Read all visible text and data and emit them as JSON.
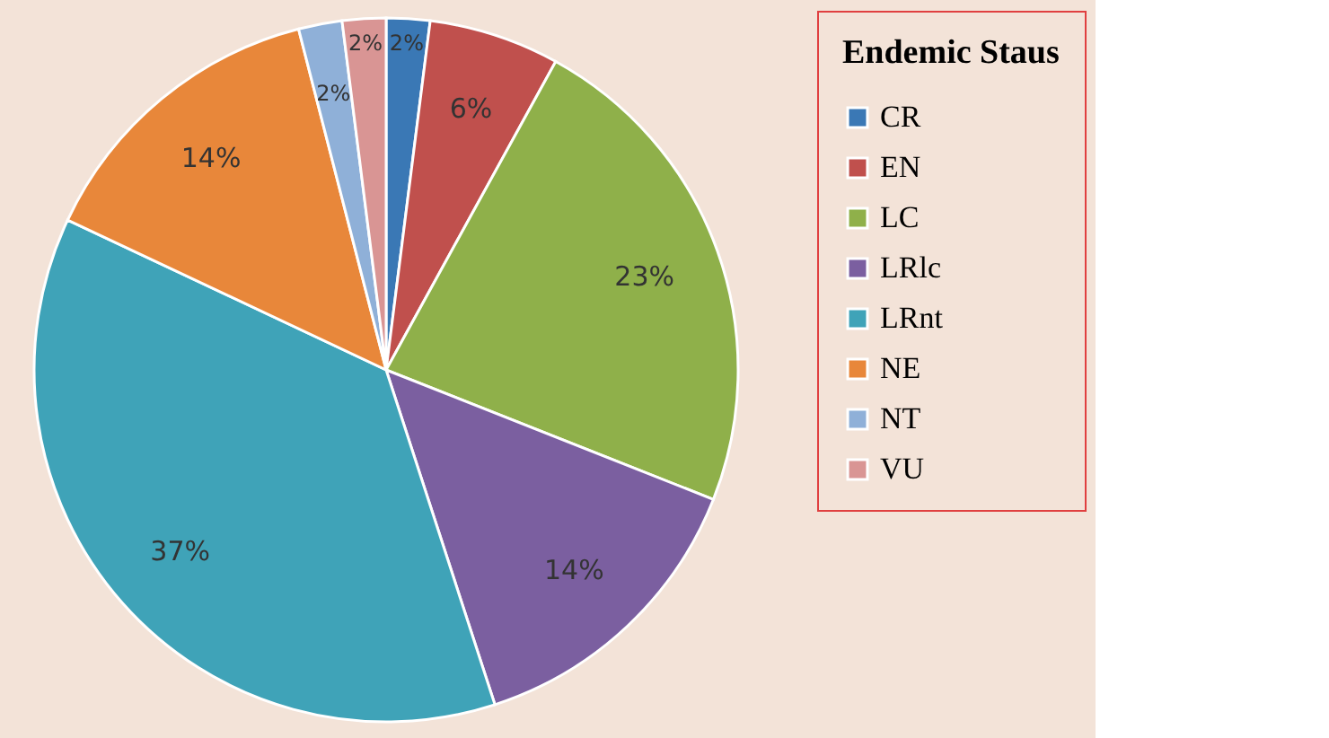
{
  "chart_data": {
    "type": "pie",
    "legend_title": "Endemic Staus",
    "legend": "right",
    "categories": [
      "CR",
      "EN",
      "LC",
      "LRlc",
      "LRnt",
      "NE",
      "NT",
      "VU"
    ],
    "values": [
      2,
      6,
      23,
      14,
      37,
      14,
      2,
      2
    ],
    "value_labels": [
      "2%",
      "6%",
      "23%",
      "14%",
      "37%",
      "14%",
      "2%",
      "2%"
    ],
    "colors": [
      "#3a78b5",
      "#c0504d",
      "#8fb04a",
      "#7b5fa0",
      "#3fa3b8",
      "#e8873a",
      "#8fb0d8",
      "#d99594"
    ]
  }
}
